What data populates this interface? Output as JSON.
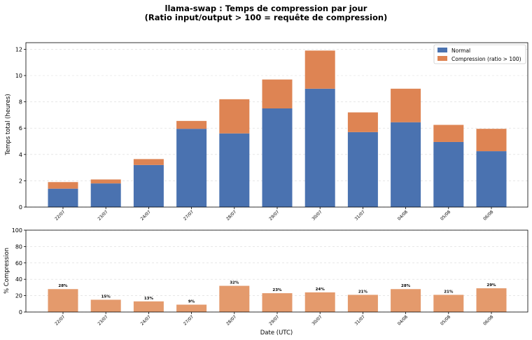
{
  "chart_data": [
    {
      "type": "bar",
      "stacked": true,
      "title": "llama-swap : Temps de compression par jour",
      "subtitle": "(Ratio input/output > 100 = requête de compression)",
      "xlabel": "",
      "ylabel": "Temps total (heures)",
      "ylim": [
        0,
        12.5
      ],
      "yticks": [
        0,
        2,
        4,
        6,
        8,
        10,
        12
      ],
      "grid": "y",
      "legend_position": "top-right",
      "categories": [
        "22/07",
        "23/07",
        "24/07",
        "27/07",
        "28/07",
        "29/07",
        "30/07",
        "31/07",
        "04/08",
        "05/08",
        "06/08"
      ],
      "series": [
        {
          "name": "Normal",
          "color": "#4a72b0",
          "values": [
            1.4,
            1.8,
            3.2,
            5.95,
            5.6,
            7.5,
            9.0,
            5.7,
            6.45,
            4.95,
            4.25
          ]
        },
        {
          "name": "Compression (ratio > 100)",
          "color": "#de8453",
          "values": [
            0.5,
            0.3,
            0.45,
            0.6,
            2.6,
            2.2,
            2.9,
            1.5,
            2.55,
            1.3,
            1.7
          ]
        }
      ]
    },
    {
      "type": "bar",
      "xlabel": "Date (UTC)",
      "ylabel": "% Compression",
      "ylim": [
        0,
        100
      ],
      "yticks": [
        0,
        20,
        40,
        60,
        80,
        100
      ],
      "grid": "y",
      "color": "#e49a6c",
      "categories": [
        "22/07",
        "23/07",
        "24/07",
        "27/07",
        "28/07",
        "29/07",
        "30/07",
        "31/07",
        "04/08",
        "05/08",
        "06/08"
      ],
      "values": [
        28,
        15,
        13,
        9,
        32,
        23,
        24,
        21,
        28,
        21,
        29
      ],
      "data_labels": [
        "28%",
        "15%",
        "13%",
        "9%",
        "32%",
        "23%",
        "24%",
        "21%",
        "28%",
        "21%",
        "29%"
      ]
    }
  ]
}
